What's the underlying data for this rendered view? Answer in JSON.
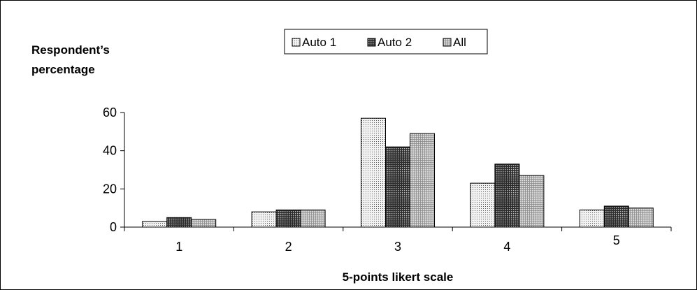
{
  "chart_data": {
    "type": "bar",
    "ylabel": [
      "Respondent’s",
      "percentage"
    ],
    "xlabel": "5-points likert scale",
    "categories": [
      "1",
      "2",
      "3",
      "4",
      "5"
    ],
    "ylim": [
      0,
      60
    ],
    "yticks": [
      0,
      20,
      40,
      60
    ],
    "legend_position": "top-center",
    "series": [
      {
        "name": "Auto 1",
        "values": [
          3,
          8,
          57,
          23,
          9
        ],
        "pattern": "fine-dots"
      },
      {
        "name": "Auto 2",
        "values": [
          5,
          9,
          42,
          33,
          11
        ],
        "pattern": "dark-grid"
      },
      {
        "name": "All",
        "values": [
          4,
          9,
          49,
          27,
          10
        ],
        "pattern": "light-grid"
      }
    ]
  }
}
